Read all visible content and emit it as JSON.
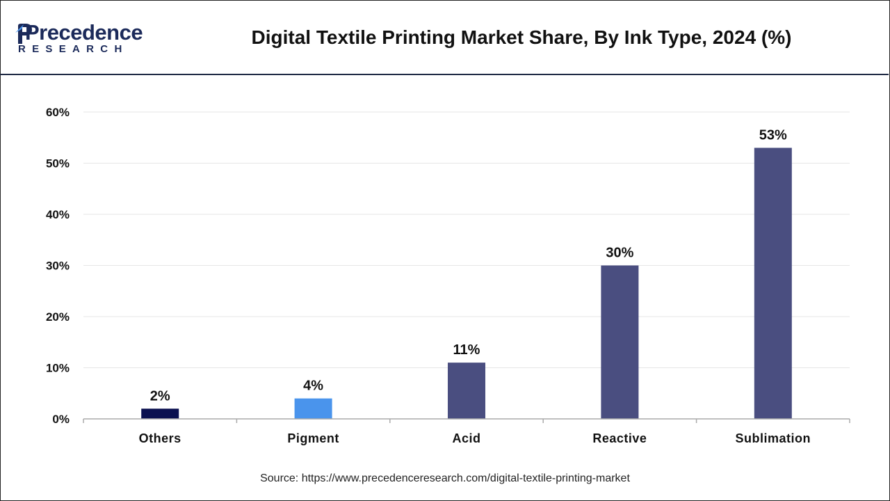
{
  "logo": {
    "word": "Precedence",
    "sub": "RESEARCH"
  },
  "source": "Source: https://www.precedenceresearch.com/digital-textile-printing-market",
  "colors": {
    "others": "#0b1150",
    "pigment": "#4a94ec",
    "main": "#4a4e80",
    "grid": "#e6e6e6",
    "axis": "#aaaaaa"
  },
  "chart_data": {
    "type": "bar",
    "title": "Digital Textile Printing Market Share, By Ink Type, 2024 (%)",
    "categories": [
      "Others",
      "Pigment",
      "Acid",
      "Reactive",
      "Sublimation"
    ],
    "values": [
      2,
      4,
      11,
      30,
      53
    ],
    "value_labels": [
      "2%",
      "4%",
      "11%",
      "30%",
      "53%"
    ],
    "bar_colors": [
      "#0b1150",
      "#4a94ec",
      "#4a4e80",
      "#4a4e80",
      "#4a4e80"
    ],
    "yticks": [
      0,
      10,
      20,
      30,
      40,
      50,
      60
    ],
    "ytick_labels": [
      "0%",
      "10%",
      "20%",
      "30%",
      "40%",
      "50%",
      "60%"
    ],
    "ylim": [
      0,
      60
    ],
    "xlabel": "",
    "ylabel": "",
    "grid": true,
    "legend": "none"
  }
}
